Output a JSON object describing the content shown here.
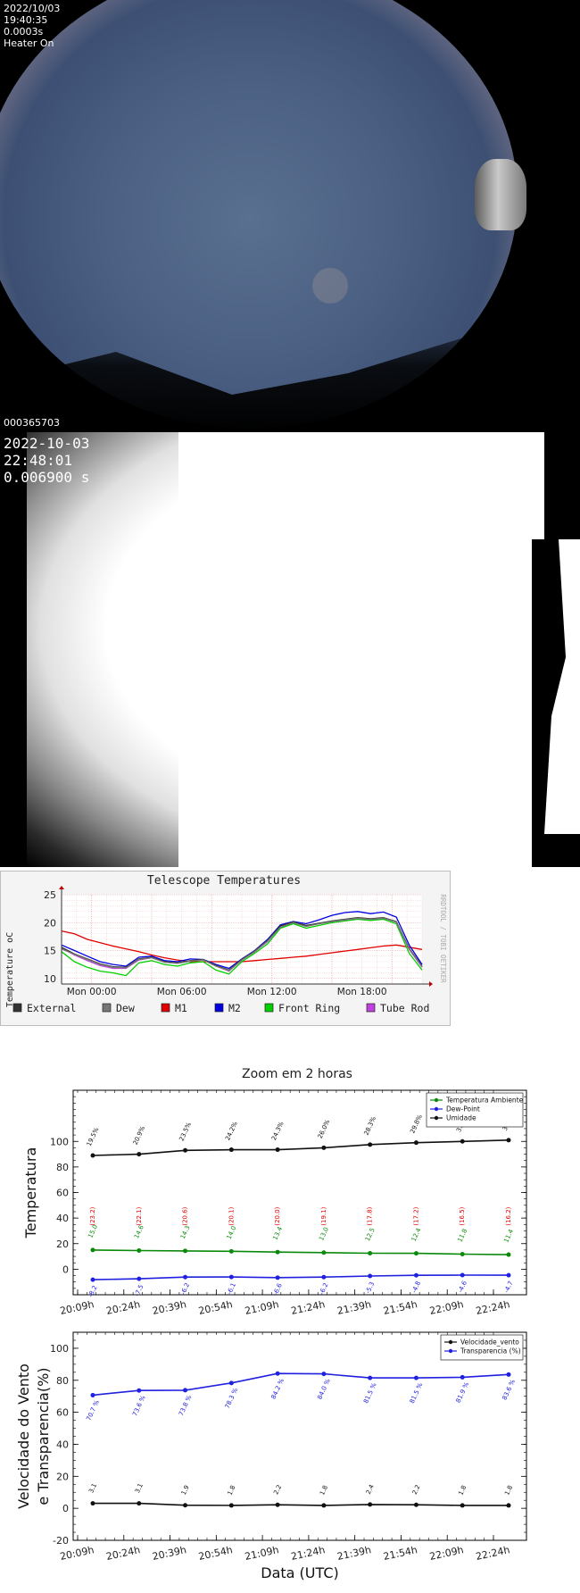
{
  "camera1": {
    "date": "2022/10/03",
    "time": "19:40:35",
    "exposure": "0.0003s",
    "heater": "Heater On",
    "frame_id": "000365703"
  },
  "camera2": {
    "date": "2022-10-03",
    "time": "22:48:01",
    "exposure": "0.006900 s"
  },
  "telescope_chart": {
    "chart_data": {
      "type": "line",
      "title": "Telescope Temperatures",
      "ylabel": "Temperature oC",
      "side_label": "RRDTOOL / TOBI OETIKER",
      "ylim": [
        9,
        25
      ],
      "yticks": [
        "25",
        "20",
        "15",
        "10"
      ],
      "xticks": [
        "Mon 00:00",
        "Mon 06:00",
        "Mon 12:00",
        "Mon 18:00"
      ],
      "legend": [
        {
          "name": "External",
          "color": "#333333"
        },
        {
          "name": "Dew",
          "color": "#777777"
        },
        {
          "name": "M1",
          "color": "#e00000"
        },
        {
          "name": "M2",
          "color": "#0000e0"
        },
        {
          "name": "Front Ring",
          "color": "#00d000"
        },
        {
          "name": "Tube Rod",
          "color": "#c040e0"
        }
      ],
      "series": [
        {
          "name": "M1",
          "color": "#e00000",
          "values": [
            18.5,
            18,
            17,
            16.4,
            15.8,
            15.3,
            14.8,
            14.2,
            13.7,
            13.3,
            13,
            13,
            13,
            13,
            13,
            13.2,
            13.4,
            13.6,
            13.8,
            14,
            14.3,
            14.6,
            14.9,
            15.2,
            15.5,
            15.8,
            16,
            15.6,
            15.2
          ]
        },
        {
          "name": "M2",
          "color": "#0000e0",
          "values": [
            16,
            15,
            14,
            13,
            12.5,
            12.2,
            13.8,
            14,
            13.2,
            13,
            13.5,
            13.4,
            12.5,
            11.8,
            13.5,
            15,
            17,
            19.6,
            20.2,
            19.8,
            20.5,
            21.3,
            21.8,
            22,
            21.6,
            21.9,
            21,
            16,
            12.5
          ]
        },
        {
          "name": "Front Ring",
          "color": "#00d000",
          "values": [
            14.8,
            13,
            12,
            11.3,
            11,
            10.5,
            12.8,
            13.2,
            12.5,
            12.2,
            12.8,
            13,
            11.5,
            10.8,
            13,
            14.5,
            16.2,
            19,
            19.8,
            19,
            19.5,
            20,
            20.3,
            20.6,
            20.4,
            20.6,
            19.8,
            14.5,
            11.5
          ]
        },
        {
          "name": "Tube Rod",
          "color": "#c040e0",
          "values": [
            15.5,
            14.2,
            13.2,
            12.3,
            11.8,
            11.8,
            13.3,
            13.7,
            12.9,
            12.7,
            13.1,
            13.3,
            12.2,
            11.3,
            13.3,
            14.8,
            16.6,
            19.3,
            20,
            19.4,
            19.8,
            20.2,
            20.5,
            20.8,
            20.6,
            20.8,
            20.1,
            15.2,
            12
          ]
        },
        {
          "name": "External",
          "color": "#333333",
          "values": [
            15.6,
            14.4,
            13.5,
            12.6,
            12.1,
            12,
            13.5,
            13.8,
            13,
            12.8,
            13.2,
            13.4,
            12.3,
            11.5,
            13.4,
            14.9,
            16.8,
            19.4,
            20.1,
            19.5,
            19.9,
            20.3,
            20.6,
            20.9,
            20.7,
            20.9,
            20.2,
            15.4,
            12.2
          ]
        },
        {
          "name": "Dew",
          "color": "#777777",
          "values": [
            15.3,
            14.3,
            13.4,
            12.5,
            12,
            11.9,
            13.4,
            13.7,
            12.9,
            12.7,
            13.1,
            13.3,
            12.2,
            11.4,
            13.3,
            14.8,
            16.7,
            19.2,
            20,
            19.3,
            19.8,
            20.2,
            20.5,
            20.8,
            20.6,
            20.8,
            20.1,
            15.3,
            12.1
          ]
        }
      ]
    }
  },
  "zoom_title": "Zoom em 2 horas",
  "chart_data": [
    {
      "type": "line",
      "ylabel": "Temperatura",
      "ylim": [
        -20,
        140
      ],
      "yticks": [
        0,
        20,
        40,
        60,
        80,
        100
      ],
      "x": [
        "20:09h",
        "20:24h",
        "20:39h",
        "20:54h",
        "21:09h",
        "21:24h",
        "21:39h",
        "21:54h",
        "22:09h",
        "22:24h"
      ],
      "series": [
        {
          "name": "Temperatura Ambiente",
          "color": "#0a8a0a",
          "values": [
            15.0,
            14.6,
            14.3,
            14.0,
            13.4,
            13.0,
            12.5,
            12.4,
            11.8,
            11.4
          ],
          "labels": [
            "15.0",
            "14.6",
            "14.3",
            "14.0",
            "13.4",
            "13.0",
            "12.5",
            "12.4",
            "11.8",
            "11.4"
          ]
        },
        {
          "name": "Dew-Point",
          "color": "#2020e0",
          "values": [
            -8.2,
            -7.5,
            -6.2,
            -6.1,
            -6.6,
            -6.2,
            -5.3,
            -4.8,
            -4.6,
            -4.7
          ],
          "labels": [
            "-8.2",
            "-7.5",
            "-6.2",
            "-6.1",
            "-6.6",
            "-6.2",
            "-5.3",
            "-4.8",
            "-4.6",
            "-4.7"
          ]
        },
        {
          "name": "Umidade",
          "color": "#111111",
          "values": [
            89,
            90,
            93,
            93.5,
            93.5,
            95,
            97.5,
            99,
            100,
            101
          ],
          "labels": [
            "19.5%",
            "20.9%",
            "23.5%",
            "24.2%",
            "24.3%",
            "26.0%",
            "28.3%",
            "29.8%",
            "31.2%",
            "32.3%"
          ]
        }
      ],
      "extra_labels": {
        "color": "#e00000",
        "y": 40,
        "values": [
          "(23.2)",
          "(22.1)",
          "(20.6)",
          "(20.1)",
          "(20.0)",
          "(19.1)",
          "(17.8)",
          "(17.2)",
          "(16.5)",
          "(16.2)"
        ]
      }
    },
    {
      "type": "line",
      "ylabel": "Velocidade do Vento\ne Transparencia(%)",
      "xlabel": "Data (UTC)",
      "ylim": [
        -20,
        110
      ],
      "yticks": [
        -20,
        0,
        20,
        40,
        60,
        80,
        100
      ],
      "x": [
        "20:09h",
        "20:24h",
        "20:39h",
        "20:54h",
        "21:09h",
        "21:24h",
        "21:39h",
        "21:54h",
        "22:09h",
        "22:24h"
      ],
      "series": [
        {
          "name": "Velocidade_vento",
          "color": "#111111",
          "values": [
            3.1,
            3.1,
            1.9,
            1.8,
            2.2,
            1.8,
            2.4,
            2.2,
            1.8,
            1.8
          ],
          "labels": [
            "3.1",
            "3.1",
            "1.9",
            "1.8",
            "2.2",
            "1.8",
            "2.4",
            "2.2",
            "1.8",
            "1.8"
          ]
        },
        {
          "name": "Transparencia (%)",
          "color": "#2020e0",
          "values": [
            70.7,
            73.6,
            73.8,
            78.3,
            84.2,
            84.0,
            81.5,
            81.5,
            81.9,
            83.6
          ],
          "labels": [
            "70.7 %",
            "73.6 %",
            "73.8 %",
            "78.3 %",
            "84.2 %",
            "84.0 %",
            "81.5 %",
            "81.5 %",
            "81.9 %",
            "83.6 %"
          ]
        }
      ]
    }
  ]
}
